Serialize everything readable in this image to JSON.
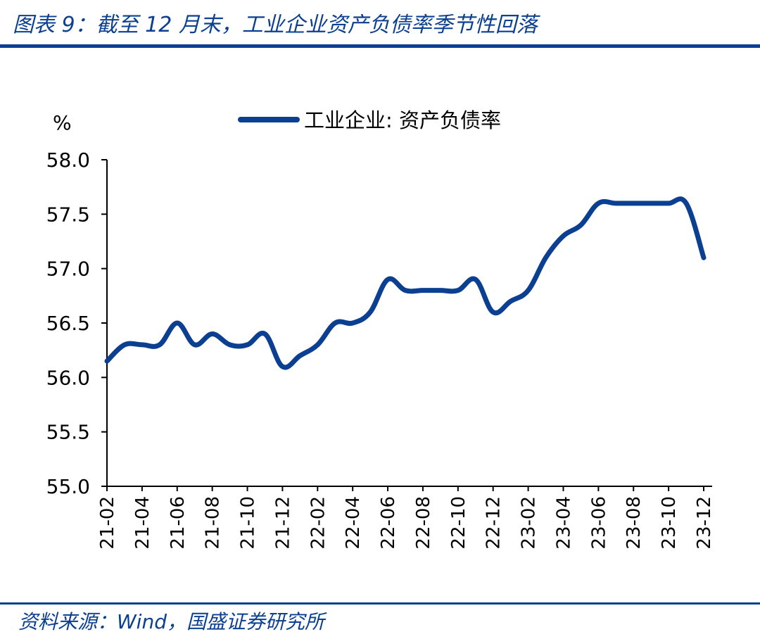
{
  "header": {
    "title": "图表 9：截至 12 月末，工业企业资产负债率季节性回落"
  },
  "footer": {
    "source": "资料来源：Wind，国盛证券研究所"
  },
  "colors": {
    "accent": "#0b3f91",
    "line": "#0b3f91"
  },
  "chart_data": {
    "type": "line",
    "ylabel": "%",
    "ylim": [
      55.0,
      58.0
    ],
    "y_ticks": [
      "58.0",
      "57.5",
      "57.0",
      "56.5",
      "56.0",
      "55.5",
      "55.0"
    ],
    "x_ticks": [
      "21-02",
      "21-04",
      "21-06",
      "21-08",
      "21-10",
      "21-12",
      "22-02",
      "22-04",
      "22-06",
      "22-08",
      "22-10",
      "22-12",
      "23-02",
      "23-04",
      "23-06",
      "23-08",
      "23-10",
      "23-12"
    ],
    "legend_position": "top-center",
    "grid": false,
    "x": [
      "21-02",
      "21-03",
      "21-04",
      "21-05",
      "21-06",
      "21-07",
      "21-08",
      "21-09",
      "21-10",
      "21-11",
      "21-12",
      "22-01",
      "22-02",
      "22-03",
      "22-04",
      "22-05",
      "22-06",
      "22-07",
      "22-08",
      "22-09",
      "22-10",
      "22-11",
      "22-12",
      "23-01",
      "23-02",
      "23-03",
      "23-04",
      "23-05",
      "23-06",
      "23-07",
      "23-08",
      "23-09",
      "23-10",
      "23-11",
      "23-12"
    ],
    "series": [
      {
        "name": "工业企业: 资产负债率",
        "values": [
          56.15,
          56.3,
          56.3,
          56.3,
          56.5,
          56.3,
          56.4,
          56.3,
          56.3,
          56.4,
          56.1,
          56.2,
          56.3,
          56.5,
          56.5,
          56.6,
          56.9,
          56.8,
          56.8,
          56.8,
          56.8,
          56.9,
          56.6,
          56.7,
          56.8,
          57.1,
          57.3,
          57.4,
          57.6,
          57.6,
          57.6,
          57.6,
          57.6,
          57.6,
          57.1
        ]
      }
    ]
  }
}
